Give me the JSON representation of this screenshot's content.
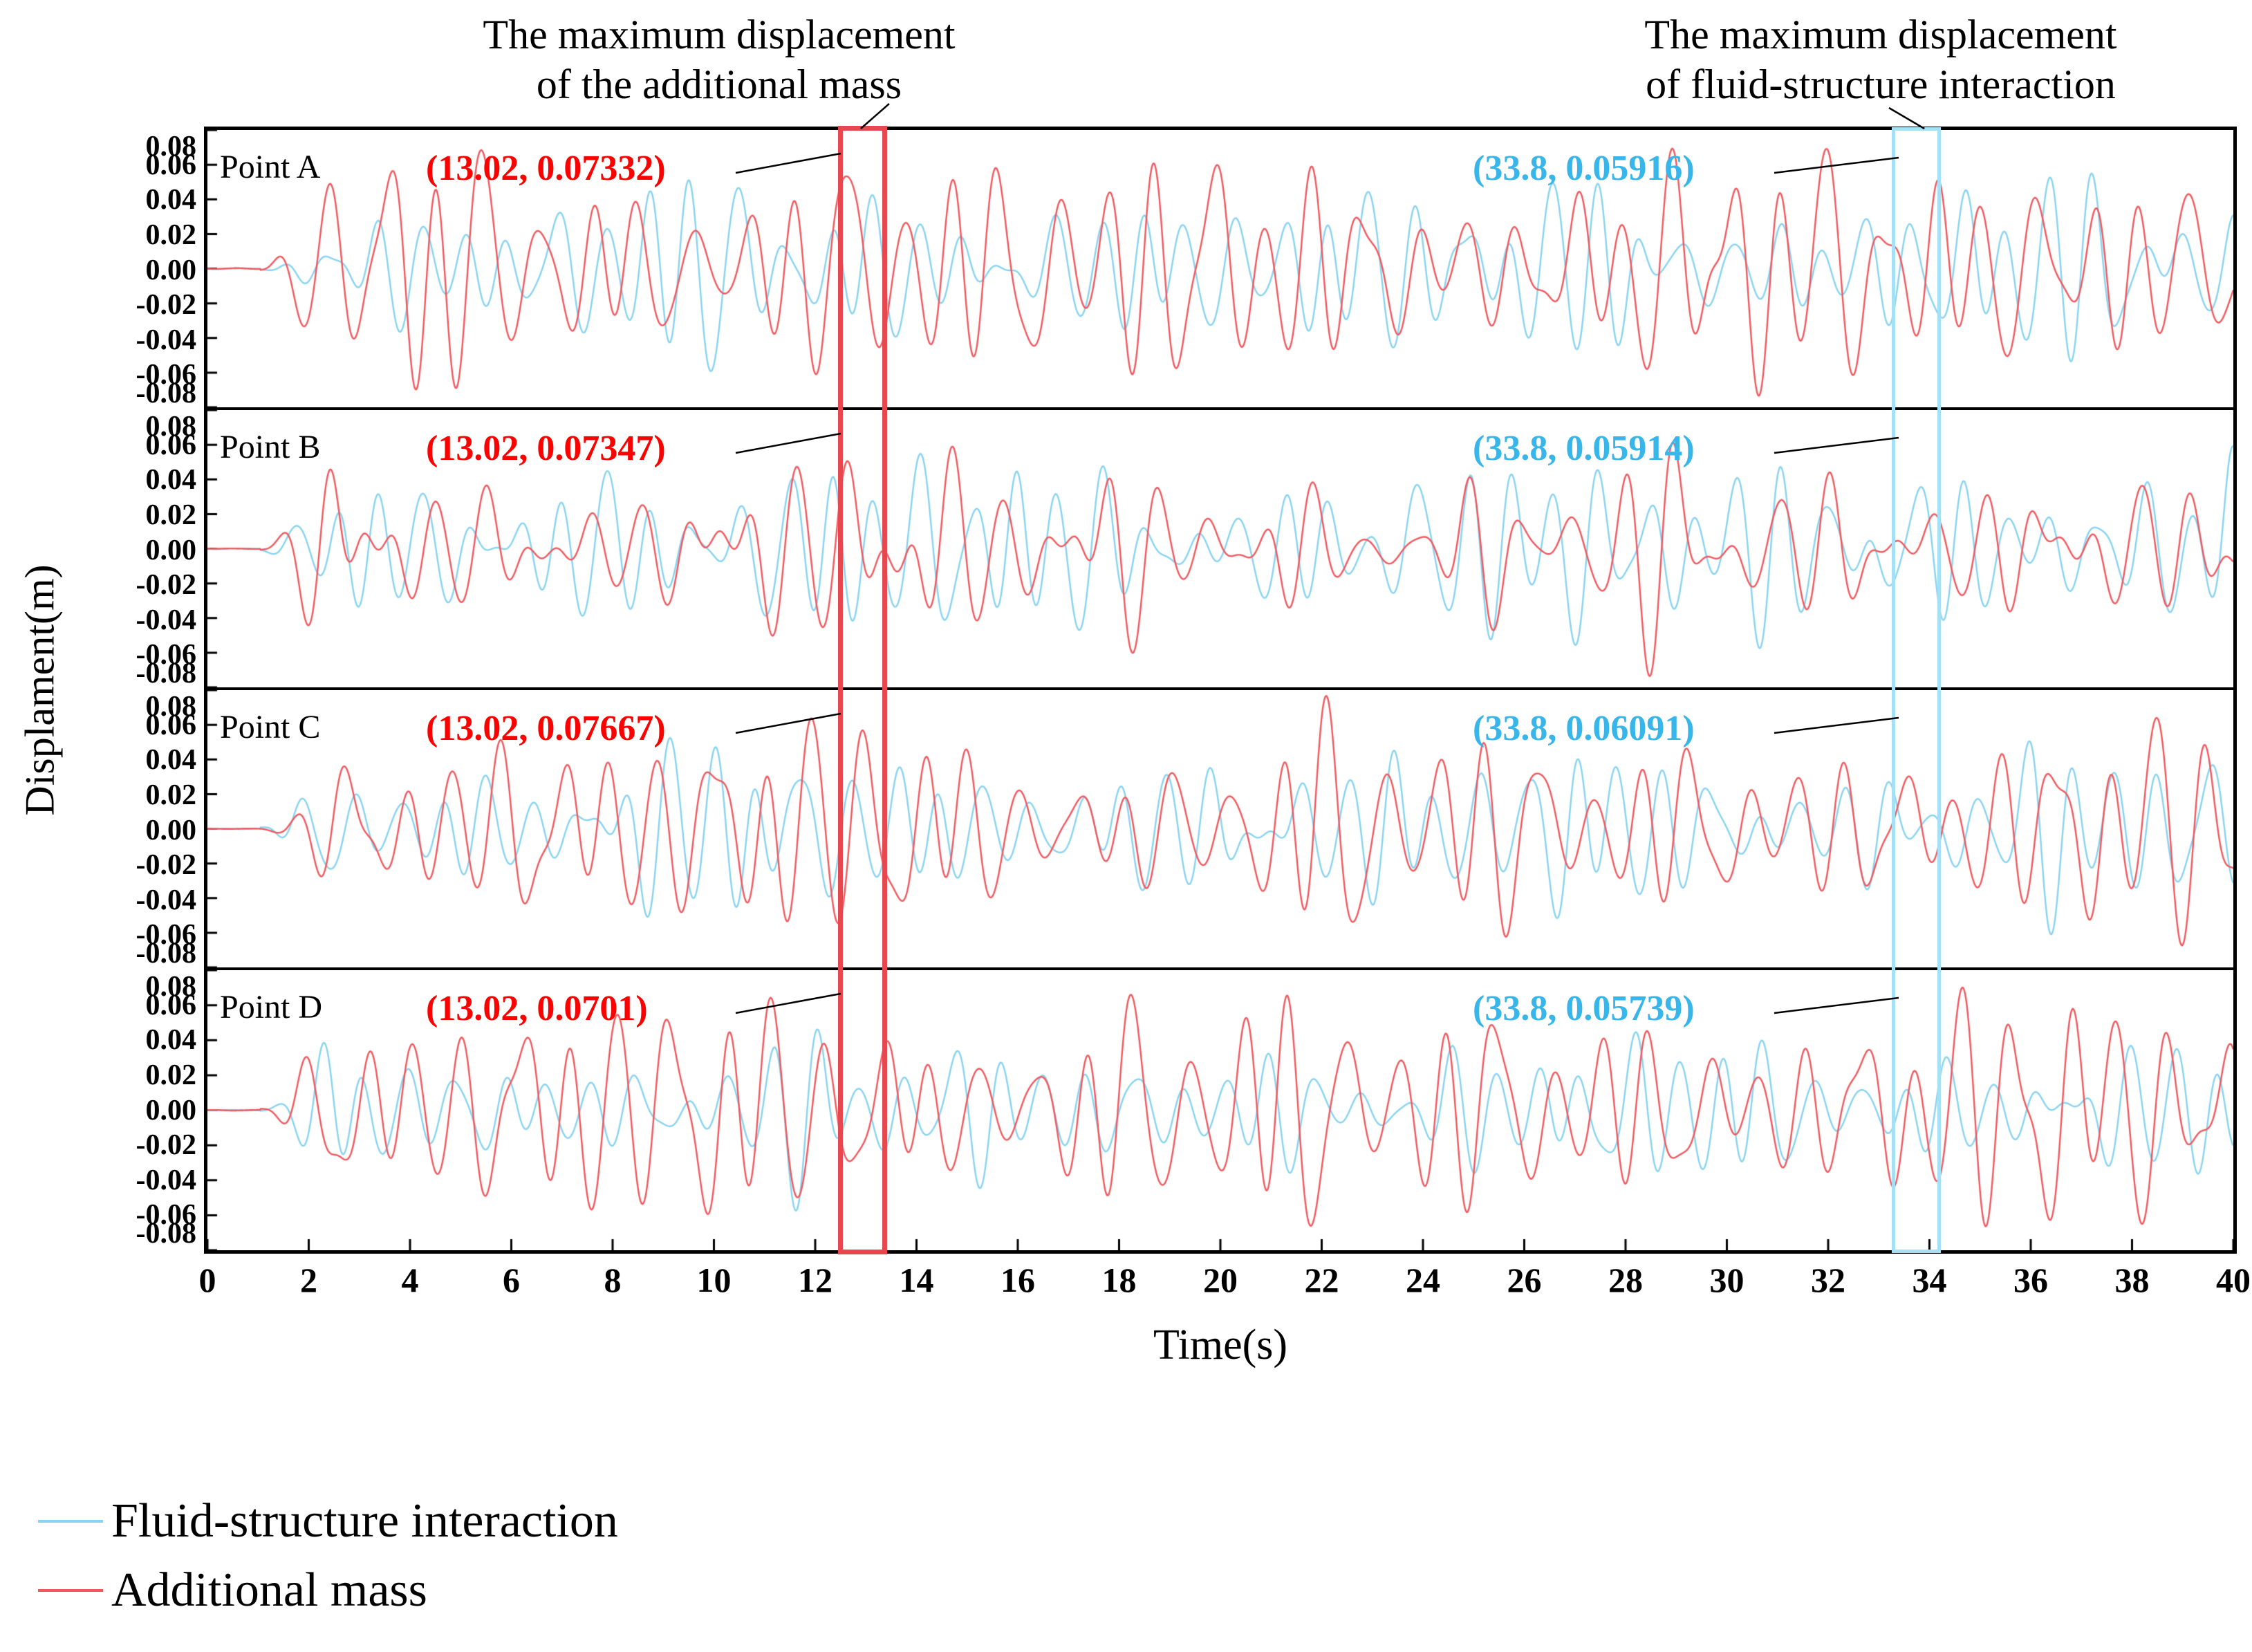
{
  "annotations": {
    "top_left": {
      "line1": "The maximum displacement",
      "line2": "of the additional mass"
    },
    "top_right": {
      "line1": "The maximum displacement",
      "line2": "of fluid-structure interaction"
    }
  },
  "axes": {
    "x_label": "Time(s)",
    "y_label": "Displament(m)",
    "x_tick_labels": [
      "0",
      "2",
      "4",
      "6",
      "8",
      "10",
      "12",
      "14",
      "16",
      "18",
      "20",
      "22",
      "24",
      "26",
      "28",
      "30",
      "32",
      "34",
      "36",
      "38",
      "40"
    ],
    "y_tick_labels": [
      "0.08",
      "0.06",
      "0.04",
      "0.02",
      "0.00",
      "-0.02",
      "-0.04",
      "-0.06",
      "-0.08"
    ]
  },
  "legend": {
    "items": [
      {
        "label": "Fluid-structure interaction",
        "color": "#87d3f0"
      },
      {
        "label": "Additional mass",
        "color": "#f1575d"
      }
    ]
  },
  "colors": {
    "blue_line": "#87d3f0",
    "red_line": "#f1575d",
    "blue_text": "#38b5e9",
    "red_text": "#fb0200",
    "blue_box": "#a5e0f5",
    "red_box": "#e5484e"
  },
  "chart_data": {
    "type": "line",
    "xlabel": "Time(s)",
    "ylabel": "Displament(m)",
    "x_range": [
      0,
      40
    ],
    "y_range": [
      -0.08,
      0.08
    ],
    "x_tick_step": 2,
    "y_tick_step": 0.02,
    "series": [
      {
        "name": "Fluid-structure interaction",
        "color": "#87d3f0"
      },
      {
        "name": "Additional mass",
        "color": "#f1575d"
      }
    ],
    "panels": [
      {
        "label": "Point A",
        "max_additional_mass": {
          "t": 13.02,
          "value": 0.07332,
          "text": "(13.02, 0.07332)"
        },
        "max_fluid_structure": {
          "t": 33.8,
          "value": 0.05916,
          "text": "(33.8, 0.05916)"
        }
      },
      {
        "label": "Point B",
        "max_additional_mass": {
          "t": 13.02,
          "value": 0.07347,
          "text": "(13.02, 0.07347)"
        },
        "max_fluid_structure": {
          "t": 33.8,
          "value": 0.05914,
          "text": "(33.8, 0.05914)"
        }
      },
      {
        "label": "Point C",
        "max_additional_mass": {
          "t": 13.02,
          "value": 0.07667,
          "text": "(13.02, 0.07667)"
        },
        "max_fluid_structure": {
          "t": 33.8,
          "value": 0.06091,
          "text": "(33.8, 0.06091)"
        }
      },
      {
        "label": "Point D",
        "max_additional_mass": {
          "t": 13.02,
          "value": 0.0701,
          "text": "(13.02, 0.0701)"
        },
        "max_fluid_structure": {
          "t": 33.8,
          "value": 0.05739,
          "text": "(33.8, 0.05739)"
        }
      }
    ],
    "highlight_windows": [
      {
        "series": "Additional mass",
        "t_start": 12.45,
        "t_end": 13.42,
        "color": "#e5484e"
      },
      {
        "series": "Fluid-structure interaction",
        "t_start": 33.25,
        "t_end": 34.23,
        "color": "#a5e0f5"
      }
    ]
  }
}
